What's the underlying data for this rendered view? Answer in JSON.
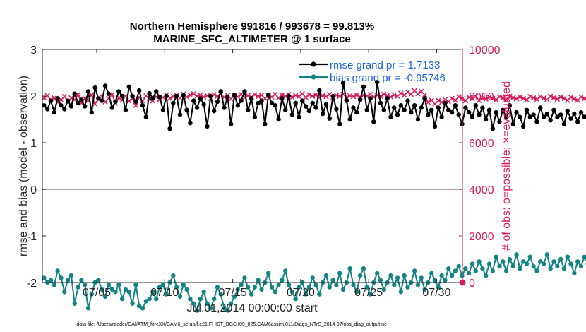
{
  "chart_data": {
    "type": "line",
    "title_line1": "Northern Hemisphere 991816 / 993678 = 99.813%",
    "title_line2": "MARINE_SFC_ALTIMETER @ 1 surface",
    "xlabel": "Jul.01,2014 00:00:00 start",
    "ylabel_left": "rmse and bias (model - observation)",
    "ylabel_right": "# of obs: o=possible; ×=evaluated",
    "footer": "data file: /Users/raeder/DAI/ATM_forcXX/CAM6_setup/f.e21.FHIST_BGC.f09_025.CAM6assim.011/Diags_NTrS_2014-07/obs_diag_output.nc",
    "xlim": [
      1.0,
      31.9
    ],
    "ylim_left": [
      -2,
      3
    ],
    "ylim_right": [
      0,
      10000
    ],
    "x_ticks": [
      5,
      10,
      15,
      20,
      25,
      30
    ],
    "x_tick_labels": [
      "07/05",
      "07/10",
      "07/15",
      "07/20",
      "07/25",
      "07/30"
    ],
    "y_ticks_left": [
      -2,
      -1,
      0,
      1,
      2,
      3
    ],
    "y_ticks_right": [
      0,
      2000,
      4000,
      6000,
      8000,
      10000
    ],
    "legend": [
      {
        "name": "rmse grand pr = 1.7133",
        "color": "#000000"
      },
      {
        "name": "bias grand pr = -0.95746",
        "color": "#138484"
      }
    ],
    "colors": {
      "rmse": "#000000",
      "bias": "#138484",
      "nobs": "#d81b60",
      "zero_line": "#b3a1a6"
    },
    "x_start": 1.125,
    "x_step": 0.25,
    "rmse_values": [
      1.8,
      1.72,
      1.9,
      1.65,
      1.95,
      1.8,
      1.72,
      1.9,
      1.78,
      2.05,
      1.85,
      1.92,
      1.78,
      2.1,
      1.65,
      2.18,
      1.95,
      1.9,
      2.22,
      2.05,
      1.75,
      1.88,
      2.1,
      2.0,
      1.7,
      2.2,
      2.0,
      1.88,
      2.12,
      1.8,
      1.55,
      2.06,
      1.95,
      2.1,
      1.98,
      1.7,
      2.0,
      1.3,
      1.85,
      2.0,
      1.6,
      2.02,
      1.7,
      1.42,
      1.9,
      1.75,
      1.95,
      1.82,
      1.35,
      2.0,
      1.68,
      1.88,
      2.1,
      1.75,
      1.98,
      1.4,
      2.02,
      1.8,
      1.9,
      2.1,
      1.7,
      1.95,
      1.55,
      1.85,
      1.9,
      1.4,
      2.02,
      1.85,
      1.8,
      1.5,
      1.95,
      1.7,
      2.0,
      1.6,
      1.85,
      1.55,
      1.9,
      1.78,
      1.68,
      1.85,
      1.75,
      2.12,
      1.62,
      1.82,
      1.52,
      2.0,
      1.72,
      1.4,
      2.28,
      1.9,
      1.5,
      1.75,
      1.65,
      1.92,
      2.2,
      1.7,
      1.95,
      1.45,
      2.3,
      1.85,
      1.7,
      1.95,
      1.55,
      1.75,
      1.6,
      1.8,
      1.7,
      1.9,
      1.65,
      1.8,
      1.5,
      1.75,
      1.95,
      1.6,
      1.7,
      1.35,
      1.75,
      1.55,
      1.85,
      1.7,
      1.65,
      1.8,
      1.6,
      1.4,
      1.75,
      1.65,
      1.55,
      1.8,
      1.6,
      1.75,
      1.5,
      1.7,
      1.3,
      1.65,
      1.45,
      1.7,
      1.55,
      1.8,
      1.4,
      1.65,
      1.55,
      1.35,
      1.7,
      1.55,
      1.6,
      1.45,
      1.75,
      1.55,
      1.62,
      1.48,
      1.7,
      1.55,
      1.6,
      1.4,
      1.68,
      1.52,
      1.62,
      1.45,
      1.65,
      1.55,
      1.6,
      1.45,
      1.62,
      1.5,
      1.58,
      1.38,
      1.55,
      1.6,
      1.4,
      1.65,
      1.5,
      1.35,
      1.58,
      1.45,
      1.62,
      1.4,
      1.5,
      1.35,
      1.55,
      1.4,
      1.58,
      1.45,
      1.9,
      1.42,
      1.52,
      1.4,
      1.45,
      1.32,
      1.48,
      1.35,
      1.38,
      1.3,
      1.42,
      1.38,
      1.35,
      1.45,
      1.4,
      1.5,
      1.45,
      1.4,
      1.38,
      1.3
    ],
    "nobs_values": [
      7920,
      8020,
      7830,
      7920,
      7730,
      7840,
      7980,
      7760,
      7920,
      7840,
      8060,
      7700,
      7900,
      7810,
      8050,
      7660,
      7850,
      7980,
      7750,
      7900,
      8060,
      7700,
      7920,
      7830,
      7990,
      7780,
      7880,
      7600,
      7950,
      7800,
      8010,
      7880,
      7790,
      7970,
      7850,
      7940,
      8050,
      7900,
      7980,
      8030,
      7920,
      8080,
      7960,
      8040,
      8100,
      7990,
      8050,
      7960,
      8020,
      7900,
      8060,
      7990,
      8080,
      7950,
      8030,
      7880,
      8040,
      7970,
      8070,
      7930,
      8020,
      7950,
      8060,
      7980,
      8040,
      7900,
      8030,
      7960,
      8080,
      7920,
      8050,
      7990,
      8070,
      7950,
      8030,
      7980,
      8100,
      7940,
      8060,
      7990,
      8050,
      7930,
      8020,
      7980,
      8070,
      7950,
      8040,
      7990,
      8080,
      7930,
      8020,
      7980,
      8050,
      7960,
      8030,
      7990,
      8070,
      7960,
      8040,
      7990,
      8080,
      8020,
      7960,
      8050,
      7990,
      8120,
      8040,
      8170,
      8080,
      8230,
      8100,
      8200,
      8050,
      7730,
      7820,
      7660,
      7810,
      7730,
      7850,
      7760,
      7900,
      7820,
      7970,
      7880,
      7800,
      7950,
      7890,
      7990,
      7810,
      7920,
      7870,
      7960,
      7900,
      7840,
      7970,
      7920,
      7850,
      7990,
      7930,
      7880,
      7960,
      7900,
      7840,
      7980,
      7920,
      7860,
      7970,
      7910,
      7850,
      7990,
      7930,
      7870,
      7960,
      7900,
      7820,
      7950,
      7880,
      7820,
      7960,
      7890,
      7820,
      7940,
      7870,
      7800,
      7700,
      7640,
      7780,
      7710,
      7840,
      7760,
      7900,
      7820,
      7770,
      7850,
      7800,
      7740,
      7880,
      7810,
      8060,
      8130,
      8070,
      8200,
      8110,
      8180,
      8040,
      8130,
      8080,
      8190,
      8120,
      8050,
      8160,
      8100,
      8200,
      8140,
      8070,
      8180,
      8120,
      8050,
      8150,
      8090,
      8180,
      8120,
      8040,
      8150,
      8100
    ],
    "bias_values": [
      -1.9,
      -2.0,
      -1.95,
      -2.05,
      -1.75,
      -1.9,
      -2.2,
      -1.95,
      -1.85,
      -2.45,
      -2.1,
      -1.95,
      -2.05,
      -2.55,
      -2.25,
      -2.0,
      -1.95,
      -2.15,
      -2.3,
      -2.05,
      -2.15,
      -2.2,
      -2.05,
      -2.35,
      -2.15,
      -2.2,
      -2.45,
      -2.05,
      -2.5,
      -2.55,
      -2.4,
      -2.35,
      -2.2,
      -2.35,
      -2.1,
      -2.05,
      -2.25,
      -2.0,
      -1.85,
      -2.1,
      -2.3,
      -2.05,
      -2.15,
      -2.35,
      -2.45,
      -2.6,
      -2.35,
      -2.2,
      -2.45,
      -2.55,
      -2.35,
      -2.1,
      -2.25,
      -2.55,
      -2.6,
      -2.45,
      -2.3,
      -2.15,
      -2.05,
      -1.9,
      -2.1,
      -2.25,
      -2.1,
      -1.95,
      -2.15,
      -2.0,
      -1.8,
      -2.1,
      -2.2,
      -2.05,
      -1.95,
      -1.75,
      -2.05,
      -2.2,
      -2.35,
      -2.1,
      -2.0,
      -2.25,
      -2.1,
      -1.9,
      -2.05,
      -2.25,
      -2.0,
      -1.85,
      -2.1,
      -1.95,
      -2.05,
      -1.8,
      -2.15,
      -2.0,
      -1.7,
      -2.05,
      -2.2,
      -1.85,
      -1.7,
      -2.1,
      -2.25,
      -2.0,
      -1.8,
      -1.95,
      -2.15,
      -2.0,
      -1.85,
      -2.05,
      -1.9,
      -2.2,
      -1.85,
      -2.1,
      -2.0,
      -1.75,
      -2.05,
      -1.9,
      -2.15,
      -2.0,
      -1.8,
      -1.95,
      -2.1,
      -1.85,
      -1.95,
      -1.7,
      -1.85,
      -1.75,
      -1.65,
      -1.85,
      -1.7,
      -1.8,
      -1.6,
      -1.75,
      -1.55,
      -1.7,
      -1.85,
      -1.6,
      -1.75,
      -1.45,
      -1.65,
      -1.55,
      -1.75,
      -1.5,
      -1.65,
      -1.4,
      -1.7,
      -1.55,
      -1.6,
      -1.45,
      -1.65,
      -1.75,
      -1.55,
      -1.6,
      -1.4,
      -1.7,
      -1.55,
      -1.65,
      -1.5,
      -1.7,
      -1.45,
      -1.6,
      -1.8,
      -1.55,
      -1.65,
      -1.45,
      -1.6,
      -1.7,
      -1.5,
      -1.65,
      -1.75,
      -1.5,
      -1.6,
      -1.45,
      -1.65,
      -1.4,
      -1.6,
      -1.7,
      -1.55,
      -1.65,
      -1.5,
      -1.7,
      -1.55,
      -1.65,
      -1.45,
      -1.6,
      -1.75,
      -1.55,
      -1.65,
      -1.5,
      -1.7,
      -1.55,
      -1.65,
      -1.5,
      -1.6,
      -1.55,
      -1.65,
      -1.6,
      -1.55,
      -1.65,
      -1.6,
      -1.55,
      -1.6,
      -1.65,
      -1.55,
      -1.6
    ]
  }
}
